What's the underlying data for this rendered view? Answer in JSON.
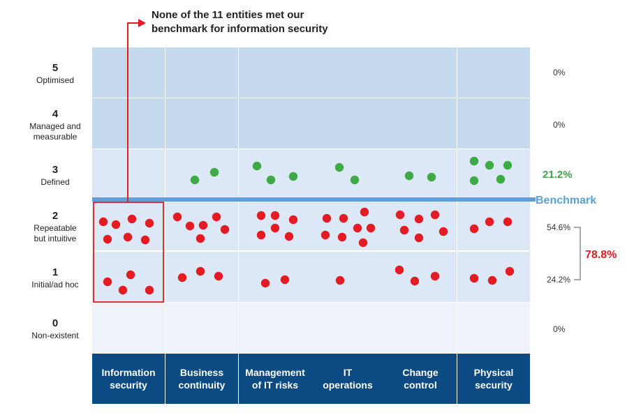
{
  "chart_data": {
    "type": "scatter",
    "title": "",
    "annotation": [
      "None of the 11 entities met our",
      "benchmark for information security"
    ],
    "levels": [
      {
        "num": "5",
        "name": [
          "Optimised"
        ],
        "pct": "0%"
      },
      {
        "num": "4",
        "name": [
          "Managed and",
          "measurable"
        ],
        "pct": "0%"
      },
      {
        "num": "3",
        "name": [
          "Defined"
        ],
        "pct": "21.2%"
      },
      {
        "num": "2",
        "name": [
          "Repeatable",
          "but intuitive"
        ],
        "pct": "54.6%"
      },
      {
        "num": "1",
        "name": [
          "Initial/ad hoc"
        ],
        "pct": "24.2%"
      },
      {
        "num": "0",
        "name": [
          "Non-existent"
        ],
        "pct": "0%"
      }
    ],
    "benchmark_label": "Benchmark",
    "benchmark_level": 2.5,
    "bracket_total": "78.8%",
    "categories": [
      {
        "label": [
          "Information",
          "security"
        ]
      },
      {
        "label": [
          "Business",
          "continuity"
        ]
      },
      {
        "label": [
          "Management",
          "of IT risks"
        ]
      },
      {
        "label": [
          "IT",
          "operations"
        ]
      },
      {
        "label": [
          "Change",
          "control"
        ]
      },
      {
        "label": [
          "Physical",
          "security"
        ]
      }
    ],
    "counts": [
      {
        "category": "Information security",
        "level_3": 0,
        "level_2": 7,
        "level_1": 4
      },
      {
        "category": "Business continuity",
        "level_3": 2,
        "level_2": 6,
        "level_1": 3
      },
      {
        "category": "Management of IT risks",
        "level_3": 3,
        "level_2": 6,
        "level_1": 2
      },
      {
        "category": "IT operations",
        "level_3": 2,
        "level_2": 8,
        "level_1": 1
      },
      {
        "category": "Change control",
        "level_3": 2,
        "level_2": 6,
        "level_1": 3
      },
      {
        "category": "Physical security",
        "level_3": 5,
        "level_2": 3,
        "level_1": 3
      }
    ],
    "highlight_category": "Information security"
  },
  "colors": {
    "row_band_dark": "#c5d9ef",
    "row_band_light": "#dce8f5",
    "row_band_lightest": "#eef3fa",
    "category_bar": "#0b4a82",
    "above_dot": "#3daa45",
    "below_dot": "#e31b23",
    "benchmark": "#5aa1d8",
    "highlight": "#e31b23",
    "pct_green": "#3daa45",
    "pct_red": "#e31b23"
  }
}
